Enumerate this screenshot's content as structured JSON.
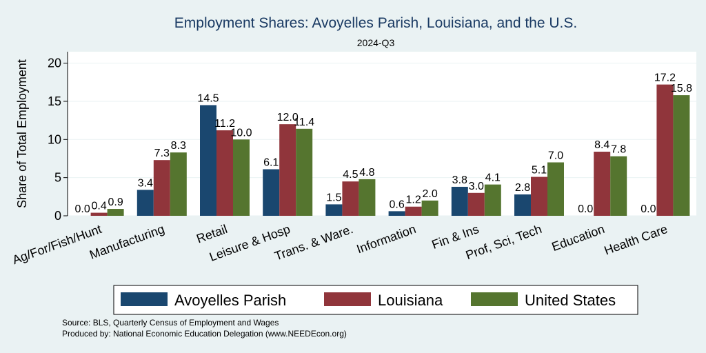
{
  "chart_data": {
    "type": "bar",
    "title": "Employment Shares: Avoyelles Parish, Louisiana, and the U.S.",
    "subtitle": "2024-Q3",
    "ylabel": "Share of Total Employment",
    "xlabel": "",
    "ylim": [
      0,
      21.5
    ],
    "yticks": [
      0,
      5,
      10,
      15,
      20
    ],
    "grid": true,
    "legend_position": "bottom",
    "categories": [
      "Ag/For/Fish/Hunt",
      "Manufacturing",
      "Retail",
      "Leisure & Hosp",
      "Trans. & Ware.",
      "Information",
      "Fin & Ins",
      "Prof, Sci, Tech",
      "Education",
      "Health Care"
    ],
    "series": [
      {
        "name": "Avoyelles Parish",
        "color": "#1a476f",
        "values": [
          0.0,
          3.4,
          14.5,
          6.1,
          1.5,
          0.6,
          3.8,
          2.8,
          0.0,
          0.0
        ],
        "labels": [
          "0.0",
          "3.4",
          "14.5",
          "6.1",
          "1.5",
          "0.6",
          "3.8",
          "2.8",
          "0.0",
          "0.0"
        ]
      },
      {
        "name": "Louisiana",
        "color": "#90353b",
        "values": [
          0.4,
          7.3,
          11.2,
          12.0,
          4.5,
          1.2,
          3.0,
          5.1,
          8.4,
          17.2
        ],
        "labels": [
          "0.4",
          "7.3",
          "11.2",
          "12.0",
          "4.5",
          "1.2",
          "3.0",
          "5.1",
          "8.4",
          "17.2"
        ]
      },
      {
        "name": "United States",
        "color": "#55752f",
        "values": [
          0.9,
          8.3,
          10.0,
          11.4,
          4.8,
          2.0,
          4.1,
          7.0,
          7.8,
          15.8
        ],
        "labels": [
          "0.9",
          "8.3",
          "10.0",
          "11.4",
          "4.8",
          "2.0",
          "4.1",
          "7.0",
          "7.8",
          "15.8"
        ]
      }
    ],
    "notes": [
      "Source: BLS, Quarterly Census of Employment and Wages",
      "Produced by: National Economic Education Delegation (www.NEEDEcon.org)"
    ]
  }
}
